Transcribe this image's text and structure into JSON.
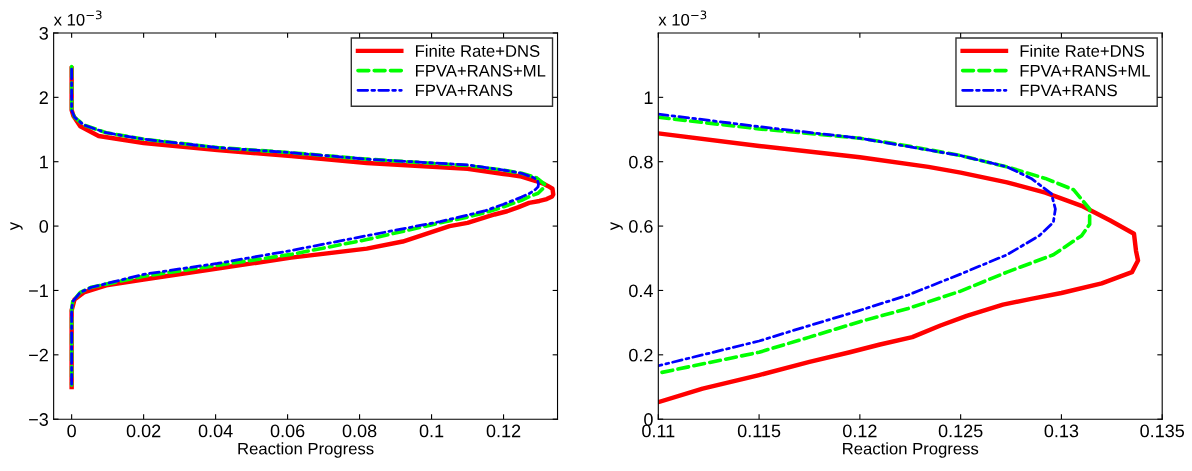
{
  "chart_data": [
    {
      "type": "line",
      "xlabel": "Reaction Progress",
      "ylabel": "y",
      "annotations": [
        "x 10$^{−3}$"
      ],
      "legend": "top right",
      "xlim": [
        -0.005,
        0.135
      ],
      "ylim": [
        -3,
        3
      ],
      "xticks": [
        0,
        0.02,
        0.04,
        0.06,
        0.08,
        0.1,
        0.12
      ],
      "yticks": [
        {
          "value": -3,
          "label": "−3"
        },
        {
          "value": -2,
          "label": "−2"
        },
        {
          "value": -1,
          "label": "−1"
        },
        0,
        1,
        2,
        3
      ],
      "series": [
        {
          "name": "Finite Rate+DNS",
          "color": "#ff0000",
          "line_style": "solid",
          "x": [
            0,
            0,
            0.0005,
            0.0024,
            0.0075,
            0.02,
            0.0405,
            0.061,
            0.082,
            0.11,
            0.12,
            0.125,
            0.129,
            0.131,
            0.1324,
            0.1336,
            0.1338,
            0.1335,
            0.132,
            0.13,
            0.1271,
            0.124,
            0.121,
            0.1175,
            0.11,
            0.105,
            0.092,
            0.082,
            0.061,
            0.0405,
            0.02,
            0.0096,
            0.0034,
            0.0008,
            0,
            0
          ],
          "values": [
            2.45,
            1.8,
            1.71,
            1.55,
            1.4,
            1.29,
            1.18,
            1.09,
            0.98,
            0.89,
            0.81,
            0.77,
            0.7,
            0.66,
            0.62,
            0.58,
            0.49,
            0.46,
            0.42,
            0.39,
            0.36,
            0.29,
            0.23,
            0.18,
            0.05,
            0,
            -0.24,
            -0.35,
            -0.49,
            -0.66,
            -0.83,
            -0.92,
            -1.03,
            -1.14,
            -1.31,
            -2.5
          ]
        },
        {
          "name": "FPVA+RANS+ML",
          "color": "#00ff00",
          "line_style": "dashed",
          "x": [
            0,
            0,
            0.0008,
            0.0034,
            0.0096,
            0.02,
            0.0405,
            0.061,
            0.082,
            0.11,
            0.12,
            0.125,
            0.1292,
            0.1314,
            0.1314,
            0.1296,
            0.1273,
            0.125,
            0.12,
            0.115,
            0.11,
            0.1024,
            0.082,
            0.061,
            0.0405,
            0.02,
            0.0055,
            0.0024,
            0.0003,
            0,
            0
          ],
          "values": [
            2.48,
            1.8,
            1.69,
            1.57,
            1.45,
            1.35,
            1.22,
            1.14,
            1.04,
            0.94,
            0.87,
            0.82,
            0.75,
            0.65,
            0.61,
            0.51,
            0.46,
            0.4,
            0.3,
            0.21,
            0.14,
            0.05,
            -0.21,
            -0.44,
            -0.61,
            -0.78,
            -0.95,
            -1.03,
            -1.17,
            -1.31,
            -2.47
          ]
        },
        {
          "name": "FPVA+RANS",
          "color": "#0000ff",
          "line_style": "dashdot",
          "x": [
            0,
            0,
            0.0008,
            0.0034,
            0.0096,
            0.02,
            0.0405,
            0.061,
            0.082,
            0.11,
            0.12,
            0.125,
            0.1285,
            0.1295,
            0.1297,
            0.1296,
            0.1289,
            0.1273,
            0.125,
            0.12,
            0.115,
            0.11,
            0.1024,
            0.082,
            0.061,
            0.0405,
            0.02,
            0.0055,
            0.0024,
            0.0003,
            0,
            0
          ],
          "values": [
            2.44,
            1.8,
            1.69,
            1.57,
            1.45,
            1.35,
            1.22,
            1.14,
            1.04,
            0.95,
            0.87,
            0.82,
            0.75,
            0.7,
            0.65,
            0.61,
            0.57,
            0.51,
            0.45,
            0.34,
            0.24,
            0.17,
            0.07,
            -0.15,
            -0.38,
            -0.58,
            -0.75,
            -0.95,
            -1.03,
            -1.17,
            -1.31,
            -2.47
          ]
        }
      ]
    },
    {
      "type": "line",
      "xlabel": "Reaction Progress",
      "ylabel": "y",
      "annotations": [
        "x 10$^{−3}$"
      ],
      "legend": "top right",
      "xlim": [
        0.11,
        0.135
      ],
      "ylim": [
        0,
        1.2
      ],
      "xticks": [
        0.11,
        0.115,
        0.12,
        0.125,
        0.13,
        0.135
      ],
      "yticks": [
        0,
        0.2,
        0.4,
        0.6,
        0.8,
        1
      ],
      "series": [
        {
          "name": "Finite Rate+DNS",
          "color": "#ff0000",
          "line_style": "solid",
          "x": [
            0.11,
            0.115,
            0.12,
            0.1234,
            0.125,
            0.1273,
            0.1292,
            0.131,
            0.1324,
            0.1336,
            0.1337,
            0.1338,
            0.1335,
            0.132,
            0.13,
            0.1285,
            0.1271,
            0.1253,
            0.124,
            0.1226,
            0.121,
            0.1195,
            0.1175,
            0.115,
            0.1122,
            0.11
          ],
          "values": [
            0.888,
            0.849,
            0.814,
            0.784,
            0.766,
            0.736,
            0.704,
            0.663,
            0.618,
            0.576,
            0.523,
            0.493,
            0.457,
            0.422,
            0.392,
            0.374,
            0.356,
            0.321,
            0.291,
            0.255,
            0.232,
            0.208,
            0.178,
            0.137,
            0.095,
            0.053
          ]
        },
        {
          "name": "FPVA+RANS+ML",
          "color": "#00ff00",
          "line_style": "dashed",
          "x": [
            0.11,
            0.115,
            0.12,
            0.1224,
            0.125,
            0.1273,
            0.1292,
            0.1306,
            0.1314,
            0.1314,
            0.131,
            0.1296,
            0.1273,
            0.125,
            0.1224,
            0.12,
            0.1175,
            0.115,
            0.11
          ],
          "values": [
            0.938,
            0.902,
            0.873,
            0.849,
            0.819,
            0.784,
            0.748,
            0.713,
            0.653,
            0.606,
            0.57,
            0.511,
            0.457,
            0.398,
            0.344,
            0.303,
            0.255,
            0.208,
            0.143
          ]
        },
        {
          "name": "FPVA+RANS",
          "color": "#0000ff",
          "line_style": "dashdot",
          "x": [
            0.11,
            0.115,
            0.12,
            0.125,
            0.1273,
            0.1285,
            0.1295,
            0.1297,
            0.1296,
            0.1289,
            0.1273,
            0.125,
            0.1224,
            0.12,
            0.1175,
            0.115,
            0.11
          ],
          "values": [
            0.948,
            0.909,
            0.873,
            0.819,
            0.784,
            0.748,
            0.701,
            0.653,
            0.612,
            0.57,
            0.511,
            0.451,
            0.386,
            0.338,
            0.291,
            0.243,
            0.166
          ]
        }
      ]
    }
  ]
}
